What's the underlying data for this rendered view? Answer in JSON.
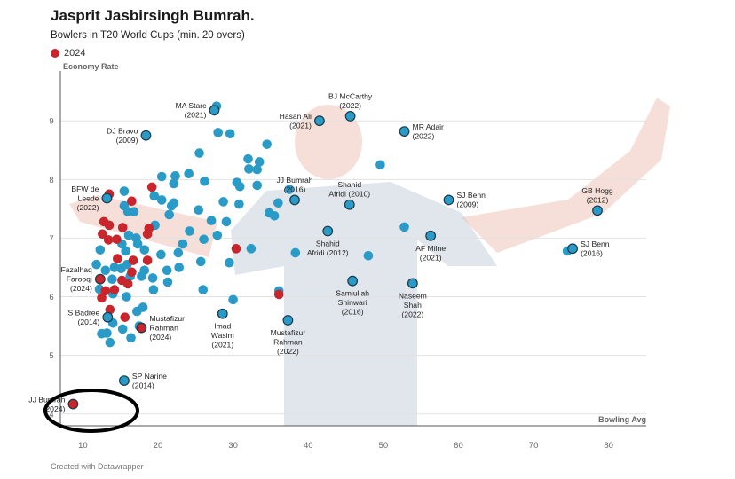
{
  "header": {
    "title": "Jasprit Jasbirsingh Bumrah.",
    "subtitle": "Bowlers in T20 World Cups (min. 20 overs)"
  },
  "legend": {
    "label": "2024",
    "color": "#c8252c"
  },
  "footer": {
    "credit": "Created with Datawrapper"
  },
  "colors": {
    "default_point": "#2a9bc7",
    "highlight_point": "#c8252c",
    "point_stroke": "#1b3a4b"
  },
  "chart_data": {
    "type": "scatter",
    "title": "Jasprit Jasbirsingh Bumrah.",
    "subtitle": "Bowlers in T20 World Cups (min. 20 overs)",
    "xlabel": "Bowling Avg",
    "ylabel": "Economy Rate",
    "xlim": [
      7,
      85
    ],
    "ylim": [
      3.8,
      9.85
    ],
    "xticks": [
      10,
      20,
      30,
      40,
      50,
      60,
      70,
      80
    ],
    "yticks": [
      4,
      5,
      6,
      7,
      8,
      9
    ],
    "grid": "horizontal",
    "legend_position": "top-left",
    "labeled_points": [
      {
        "label": "MA Starc\n(2021)",
        "x": 27.5,
        "y": 9.18,
        "is2024": false,
        "anchor": "left"
      },
      {
        "label": "BJ McCarthy\n(2022)",
        "x": 45.6,
        "y": 9.08,
        "is2024": false,
        "anchor": "top"
      },
      {
        "label": "Hasan Ali\n(2021)",
        "x": 41.5,
        "y": 9.0,
        "is2024": false,
        "anchor": "left"
      },
      {
        "label": "MR Adair\n(2022)",
        "x": 52.8,
        "y": 8.82,
        "is2024": false,
        "anchor": "right"
      },
      {
        "label": "DJ Bravo\n(2009)",
        "x": 18.4,
        "y": 8.75,
        "is2024": false,
        "anchor": "left"
      },
      {
        "label": "JJ Bumrah\n(2016)",
        "x": 38.2,
        "y": 7.65,
        "is2024": false,
        "anchor": "top"
      },
      {
        "label": "Shahid\nAfridi (2010)",
        "x": 45.5,
        "y": 7.57,
        "is2024": false,
        "anchor": "top"
      },
      {
        "label": "SJ Benn\n(2009)",
        "x": 58.7,
        "y": 7.65,
        "is2024": false,
        "anchor": "right"
      },
      {
        "label": "GB Hogg\n(2012)",
        "x": 78.5,
        "y": 7.47,
        "is2024": false,
        "anchor": "top"
      },
      {
        "label": "BFW de\nLeede\n(2022)",
        "x": 13.2,
        "y": 7.68,
        "is2024": false,
        "anchor": "left"
      },
      {
        "label": "Shahid\nAfridi (2012)",
        "x": 42.6,
        "y": 7.12,
        "is2024": false,
        "anchor": "bottom"
      },
      {
        "label": "AF Milne\n(2021)",
        "x": 56.3,
        "y": 7.04,
        "is2024": false,
        "anchor": "bottom"
      },
      {
        "label": "SJ Benn\n(2016)",
        "x": 75.2,
        "y": 6.82,
        "is2024": false,
        "anchor": "right"
      },
      {
        "label": "Fazalhaq\nFarooqi\n(2024)",
        "x": 12.3,
        "y": 6.3,
        "is2024": true,
        "anchor": "left"
      },
      {
        "label": "Samiullah\nShinwari\n(2016)",
        "x": 45.9,
        "y": 6.27,
        "is2024": false,
        "anchor": "bottom"
      },
      {
        "label": "Naseem\nShah\n(2022)",
        "x": 53.9,
        "y": 6.23,
        "is2024": false,
        "anchor": "bottom"
      },
      {
        "label": "Imad\nWasim\n(2021)",
        "x": 28.6,
        "y": 5.71,
        "is2024": false,
        "anchor": "bottom"
      },
      {
        "label": "S Badree\n(2014)",
        "x": 13.3,
        "y": 5.65,
        "is2024": false,
        "anchor": "left"
      },
      {
        "label": "Mustafizur\nRahman\n(2022)",
        "x": 37.3,
        "y": 5.6,
        "is2024": false,
        "anchor": "bottom"
      },
      {
        "label": "Mustafizur\nRahman\n(2024)",
        "x": 17.8,
        "y": 5.47,
        "is2024": true,
        "anchor": "right"
      },
      {
        "label": "SP Narine\n(2014)",
        "x": 15.5,
        "y": 4.57,
        "is2024": false,
        "anchor": "right"
      },
      {
        "label": "JJ Bumrah\n(2024)",
        "x": 8.7,
        "y": 4.17,
        "is2024": true,
        "anchor": "left"
      }
    ],
    "points_2024": [
      [
        13.5,
        7.75
      ],
      [
        16.5,
        7.63
      ],
      [
        19.2,
        7.87
      ],
      [
        12.8,
        7.28
      ],
      [
        13.5,
        7.22
      ],
      [
        12.6,
        7.07
      ],
      [
        13.4,
        6.97
      ],
      [
        14.5,
        6.98
      ],
      [
        15.3,
        7.18
      ],
      [
        18.8,
        7.17
      ],
      [
        18.6,
        7.07
      ],
      [
        14.6,
        6.65
      ],
      [
        16.7,
        6.62
      ],
      [
        18.6,
        6.62
      ],
      [
        16.5,
        6.42
      ],
      [
        15.2,
        6.28
      ],
      [
        16.0,
        6.22
      ],
      [
        13.0,
        6.1
      ],
      [
        12.5,
        5.98
      ],
      [
        14.2,
        6.12
      ],
      [
        13.6,
        5.78
      ],
      [
        15.6,
        5.65
      ],
      [
        30.4,
        6.82
      ],
      [
        36.1,
        6.04
      ]
    ],
    "points_other": [
      [
        27.8,
        9.25
      ],
      [
        28.0,
        8.8
      ],
      [
        29.6,
        8.78
      ],
      [
        34.5,
        8.6
      ],
      [
        25.5,
        8.45
      ],
      [
        32.0,
        8.35
      ],
      [
        33.5,
        8.3
      ],
      [
        49.6,
        8.25
      ],
      [
        32.1,
        8.18
      ],
      [
        33.2,
        8.17
      ],
      [
        24.1,
        8.1
      ],
      [
        22.3,
        8.06
      ],
      [
        20.5,
        8.05
      ],
      [
        26.2,
        7.97
      ],
      [
        22.1,
        7.93
      ],
      [
        30.5,
        7.95
      ],
      [
        30.9,
        7.88
      ],
      [
        33.2,
        7.9
      ],
      [
        37.5,
        7.83
      ],
      [
        15.5,
        7.8
      ],
      [
        19.5,
        7.72
      ],
      [
        20.5,
        7.65
      ],
      [
        22.1,
        7.6
      ],
      [
        28.7,
        7.62
      ],
      [
        30.8,
        7.58
      ],
      [
        36.0,
        7.6
      ],
      [
        16.8,
        7.45
      ],
      [
        21.8,
        7.55
      ],
      [
        25.4,
        7.48
      ],
      [
        27.1,
        7.3
      ],
      [
        29.1,
        7.28
      ],
      [
        34.8,
        7.43
      ],
      [
        35.5,
        7.38
      ],
      [
        15.5,
        7.55
      ],
      [
        16.0,
        7.45
      ],
      [
        19.6,
        7.22
      ],
      [
        21.5,
        7.4
      ],
      [
        52.8,
        7.19
      ],
      [
        16.1,
        7.05
      ],
      [
        17.1,
        7.0
      ],
      [
        24.2,
        7.12
      ],
      [
        23.3,
        6.9
      ],
      [
        26.1,
        6.98
      ],
      [
        27.9,
        7.05
      ],
      [
        32.4,
        6.82
      ],
      [
        38.3,
        6.75
      ],
      [
        48.0,
        6.7
      ],
      [
        74.5,
        6.78
      ],
      [
        12.3,
        6.8
      ],
      [
        15.2,
        6.9
      ],
      [
        15.7,
        6.78
      ],
      [
        17.3,
        6.9
      ],
      [
        18.2,
        6.8
      ],
      [
        20.4,
        6.72
      ],
      [
        22.7,
        6.75
      ],
      [
        25.7,
        6.6
      ],
      [
        29.5,
        6.58
      ],
      [
        14.2,
        6.5
      ],
      [
        15.9,
        6.55
      ],
      [
        17.8,
        6.35
      ],
      [
        19.3,
        6.32
      ],
      [
        21.2,
        6.45
      ],
      [
        22.8,
        6.5
      ],
      [
        11.8,
        6.55
      ],
      [
        13.0,
        6.45
      ],
      [
        13.9,
        6.3
      ],
      [
        15.1,
        6.48
      ],
      [
        16.3,
        6.35
      ],
      [
        18.2,
        6.45
      ],
      [
        19.4,
        6.12
      ],
      [
        21.3,
        6.25
      ],
      [
        26.0,
        6.12
      ],
      [
        12.2,
        6.13
      ],
      [
        14.0,
        6.05
      ],
      [
        15.8,
        6.0
      ],
      [
        18.0,
        5.82
      ],
      [
        30.0,
        5.95
      ],
      [
        36.1,
        6.1
      ],
      [
        17.2,
        5.75
      ],
      [
        14.0,
        5.55
      ],
      [
        15.3,
        5.45
      ],
      [
        17.5,
        5.5
      ],
      [
        13.2,
        5.38
      ],
      [
        13.6,
        5.22
      ],
      [
        16.4,
        5.3
      ],
      [
        12.5,
        5.37
      ]
    ]
  }
}
